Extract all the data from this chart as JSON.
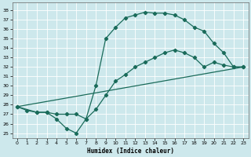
{
  "title": "",
  "xlabel": "Humidex (Indice chaleur)",
  "ylabel": "",
  "bg_color": "#cde8ec",
  "grid_color": "#ffffff",
  "line_color": "#1a6b5a",
  "xlim": [
    -0.5,
    23.5
  ],
  "ylim": [
    24.5,
    38.8
  ],
  "xticks": [
    0,
    1,
    2,
    3,
    4,
    5,
    6,
    7,
    8,
    9,
    10,
    11,
    12,
    13,
    14,
    15,
    16,
    17,
    18,
    19,
    20,
    21,
    22,
    23
  ],
  "yticks": [
    25,
    26,
    27,
    28,
    29,
    30,
    31,
    32,
    33,
    34,
    35,
    36,
    37,
    38
  ],
  "line1_x": [
    0,
    1,
    2,
    3,
    4,
    5,
    6,
    7,
    8,
    9,
    10,
    11,
    12,
    13,
    14,
    15,
    16,
    17,
    18,
    19,
    20,
    21,
    22,
    23
  ],
  "line1_y": [
    27.8,
    27.4,
    27.2,
    27.2,
    26.5,
    25.5,
    25.0,
    26.5,
    30.0,
    35.0,
    36.2,
    37.2,
    37.5,
    37.8,
    37.7,
    37.7,
    37.5,
    37.0,
    36.2,
    35.8,
    34.5,
    33.5,
    32.0,
    32.0
  ],
  "line2_x": [
    0,
    2,
    3,
    4,
    5,
    6,
    7,
    8,
    9,
    10,
    11,
    12,
    13,
    14,
    15,
    16,
    17,
    18,
    19,
    20,
    21,
    22,
    23
  ],
  "line2_y": [
    27.8,
    27.2,
    27.2,
    27.0,
    27.0,
    27.0,
    26.5,
    27.5,
    29.0,
    30.5,
    31.2,
    32.0,
    32.5,
    33.0,
    33.5,
    33.8,
    33.5,
    33.0,
    32.0,
    32.5,
    32.2,
    32.0,
    32.0
  ],
  "line3_x": [
    0,
    23
  ],
  "line3_y": [
    27.8,
    32.0
  ],
  "marker": "D",
  "markersize": 2.2,
  "linewidth": 0.9
}
